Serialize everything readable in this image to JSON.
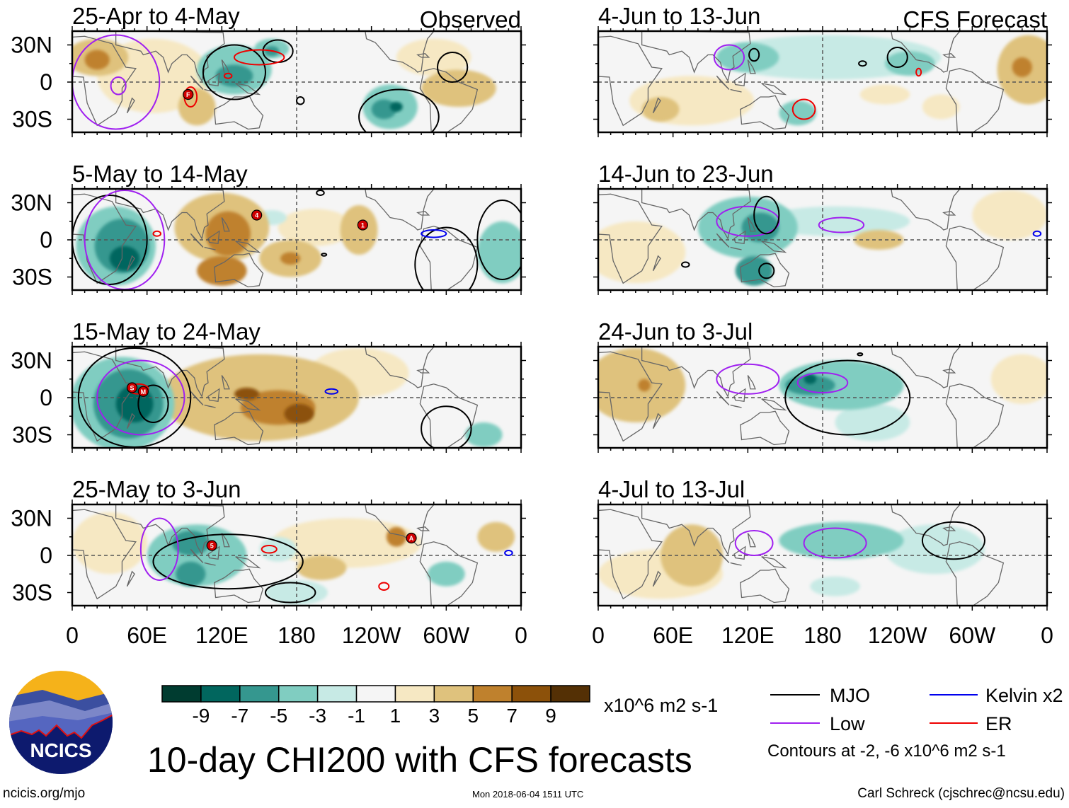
{
  "title": "10-day CHI200 with CFS forecasts",
  "site": "ncicis.org/mjo",
  "logo_text": "NCICS",
  "timestamp": "Mon 2018-06-04 1511 UTC",
  "credit": "Carl Schreck (cjschrec@ncsu.edu)",
  "column_labels": {
    "observed": "Observed",
    "forecast": "CFS Forecast"
  },
  "units": "x10^6 m2 s-1",
  "contour_note": "Contours at -2, -6 x10^6 m2 s-1",
  "legend": [
    {
      "label": "MJO",
      "color": "#000000"
    },
    {
      "label": "Kelvin x2",
      "color": "#0000ee"
    },
    {
      "label": "Low",
      "color": "#a020f0"
    },
    {
      "label": "ER",
      "color": "#ee0000"
    }
  ],
  "chart_data": {
    "type": "heatmap",
    "variable": "CHI200 anomaly",
    "lat_ticks": [
      "30N",
      "0",
      "30S"
    ],
    "lon_ticks": [
      "0",
      "60E",
      "120E",
      "180",
      "120W",
      "60W",
      "0"
    ],
    "colorbar": {
      "labels": [
        "-9",
        "-7",
        "-5",
        "-3",
        "-1",
        "1",
        "3",
        "5",
        "7",
        "9"
      ],
      "colors": [
        "#003c30",
        "#01665e",
        "#35978f",
        "#80cdc1",
        "#c7eae5",
        "#f5f5f5",
        "#f6e8c3",
        "#dfc27d",
        "#bf812d",
        "#8c510a",
        "#543005"
      ]
    },
    "panels": [
      {
        "title": "25-Apr to 4-May",
        "column": "observed",
        "blobs": [
          [
            65,
            5,
            45,
            30,
            1
          ],
          [
            20,
            20,
            25,
            15,
            3
          ],
          [
            20,
            18,
            10,
            8,
            5
          ],
          [
            100,
            -20,
            15,
            15,
            3
          ],
          [
            310,
            -5,
            30,
            15,
            3
          ],
          [
            290,
            20,
            30,
            15,
            1
          ],
          [
            130,
            10,
            30,
            20,
            -3
          ],
          [
            130,
            5,
            15,
            9,
            -5
          ],
          [
            160,
            27,
            14,
            8,
            -3
          ],
          [
            160,
            25,
            6,
            4,
            -5
          ],
          [
            255,
            -20,
            22,
            18,
            -3
          ],
          [
            250,
            -22,
            10,
            8,
            -5
          ],
          [
            260,
            -20,
            5,
            4,
            -7
          ]
        ],
        "contours": [
          [
            "MJO",
            130,
            8,
            25,
            22
          ],
          [
            "MJO",
            165,
            25,
            12,
            9
          ],
          [
            "MJO",
            305,
            12,
            12,
            12
          ],
          [
            "MJO",
            262,
            -28,
            32,
            22
          ],
          [
            "MJO",
            183,
            -15,
            3,
            3
          ],
          [
            "Low",
            35,
            0,
            35,
            38
          ],
          [
            "Low",
            37,
            -3,
            6,
            7
          ],
          [
            "ER",
            150,
            20,
            20,
            6
          ],
          [
            "ER",
            125,
            5,
            3,
            2
          ],
          [
            "ER",
            95,
            -12,
            5,
            8
          ]
        ],
        "storms": [
          [
            93,
            -10,
            "F"
          ]
        ]
      },
      {
        "title": "5-May to 14-May",
        "column": "observed",
        "blobs": [
          [
            195,
            10,
            30,
            15,
            1
          ],
          [
            120,
            10,
            38,
            28,
            3
          ],
          [
            125,
            5,
            18,
            18,
            5
          ],
          [
            120,
            -25,
            20,
            12,
            5
          ],
          [
            175,
            -15,
            25,
            15,
            3
          ],
          [
            175,
            -15,
            8,
            5,
            5
          ],
          [
            230,
            8,
            15,
            20,
            3
          ],
          [
            35,
            -5,
            32,
            32,
            -3
          ],
          [
            40,
            -5,
            22,
            22,
            -5
          ],
          [
            42,
            -15,
            12,
            10,
            -7
          ],
          [
            345,
            -10,
            20,
            25,
            -3
          ],
          [
            160,
            18,
            12,
            6,
            -1
          ]
        ],
        "contours": [
          [
            "MJO",
            30,
            0,
            30,
            36
          ],
          [
            "MJO",
            300,
            -20,
            25,
            30
          ],
          [
            "MJO",
            345,
            0,
            20,
            32
          ],
          [
            "MJO",
            199,
            38,
            3,
            2
          ],
          [
            "MJO",
            202,
            -12,
            2,
            1
          ],
          [
            "Low",
            42,
            0,
            32,
            40
          ],
          [
            "Kelvin",
            290,
            5,
            10,
            3
          ],
          [
            "ER",
            68,
            5,
            3,
            2
          ]
        ],
        "storms": [
          [
            148,
            20,
            "4"
          ],
          [
            233,
            12,
            "1"
          ]
        ]
      },
      {
        "title": "15-May to 24-May",
        "column": "observed",
        "blobs": [
          [
            230,
            20,
            40,
            20,
            1
          ],
          [
            150,
            0,
            80,
            35,
            3
          ],
          [
            165,
            -8,
            30,
            14,
            5
          ],
          [
            182,
            -13,
            12,
            8,
            7
          ],
          [
            140,
            3,
            10,
            5,
            7
          ],
          [
            40,
            -5,
            42,
            38,
            -3
          ],
          [
            45,
            -5,
            28,
            28,
            -5
          ],
          [
            50,
            -5,
            15,
            15,
            -7
          ],
          [
            330,
            -30,
            15,
            10,
            -3
          ]
        ],
        "contours": [
          [
            "MJO",
            50,
            0,
            45,
            40
          ],
          [
            "MJO",
            300,
            -25,
            20,
            18
          ],
          [
            "MJO",
            65,
            -5,
            12,
            15
          ],
          [
            "Low",
            55,
            0,
            35,
            30
          ],
          [
            "Kelvin",
            208,
            5,
            5,
            2
          ],
          [
            "ER",
            53,
            7,
            8,
            4
          ]
        ],
        "storms": [
          [
            48,
            8,
            "S"
          ],
          [
            57,
            5,
            "M"
          ]
        ]
      },
      {
        "title": "25-May to 3-Jun",
        "column": "observed",
        "blobs": [
          [
            220,
            10,
            60,
            20,
            1
          ],
          [
            30,
            10,
            30,
            25,
            1
          ],
          [
            200,
            -10,
            20,
            10,
            3
          ],
          [
            340,
            15,
            15,
            12,
            3
          ],
          [
            260,
            15,
            8,
            8,
            5
          ],
          [
            100,
            0,
            40,
            25,
            -3
          ],
          [
            95,
            10,
            15,
            10,
            -5
          ],
          [
            95,
            -15,
            12,
            10,
            -5
          ],
          [
            300,
            -15,
            15,
            10,
            -3
          ],
          [
            180,
            -30,
            25,
            10,
            -1
          ],
          [
            165,
            5,
            15,
            10,
            -1
          ]
        ],
        "contours": [
          [
            "MJO",
            125,
            -5,
            60,
            22
          ],
          [
            "MJO",
            175,
            -30,
            20,
            8
          ],
          [
            "Low",
            70,
            5,
            15,
            25
          ],
          [
            "ER",
            158,
            5,
            6,
            3
          ],
          [
            "ER",
            250,
            -25,
            4,
            3
          ],
          [
            "Kelvin",
            350,
            2,
            3,
            2
          ]
        ],
        "storms": [
          [
            112,
            8,
            "5"
          ],
          [
            272,
            14,
            "A"
          ]
        ]
      },
      {
        "title": "4-Jun to 13-Jun",
        "column": "forecast",
        "blobs": [
          [
            185,
            20,
            90,
            18,
            -1
          ],
          [
            75,
            -15,
            50,
            20,
            1
          ],
          [
            345,
            10,
            25,
            28,
            3
          ],
          [
            340,
            12,
            8,
            8,
            5
          ],
          [
            50,
            -22,
            15,
            10,
            3
          ],
          [
            160,
            -25,
            15,
            10,
            -3
          ],
          [
            120,
            20,
            25,
            12,
            -3
          ],
          [
            250,
            15,
            20,
            10,
            -3
          ],
          [
            275,
            -20,
            15,
            10,
            1
          ],
          [
            230,
            -10,
            20,
            8,
            1
          ]
        ],
        "contours": [
          [
            "Low",
            105,
            20,
            12,
            10
          ],
          [
            "MJO",
            125,
            22,
            4,
            5
          ],
          [
            "MJO",
            240,
            20,
            8,
            8
          ],
          [
            "MJO",
            212,
            15,
            3,
            2
          ],
          [
            "ER",
            165,
            -22,
            9,
            8
          ],
          [
            "ER",
            257,
            8,
            2,
            3
          ]
        ],
        "storms": []
      },
      {
        "title": "14-Jun to 23-Jun",
        "column": "forecast",
        "blobs": [
          [
            190,
            15,
            60,
            12,
            -1
          ],
          [
            120,
            10,
            40,
            25,
            -3
          ],
          [
            130,
            10,
            15,
            12,
            -5
          ],
          [
            125,
            -25,
            15,
            12,
            -5
          ],
          [
            225,
            0,
            20,
            8,
            3
          ],
          [
            330,
            20,
            30,
            20,
            1
          ],
          [
            30,
            -10,
            40,
            25,
            1
          ]
        ],
        "contours": [
          [
            "Low",
            120,
            15,
            25,
            12
          ],
          [
            "Low",
            195,
            12,
            18,
            6
          ],
          [
            "MJO",
            135,
            20,
            10,
            15
          ],
          [
            "MJO",
            135,
            -25,
            6,
            6
          ],
          [
            "MJO",
            70,
            -20,
            3,
            2
          ],
          [
            "Kelvin",
            352,
            5,
            3,
            2
          ]
        ],
        "storms": []
      },
      {
        "title": "24-Jun to 3-Jul",
        "column": "forecast",
        "blobs": [
          [
            30,
            10,
            40,
            30,
            3
          ],
          [
            37,
            10,
            5,
            5,
            5
          ],
          [
            340,
            15,
            25,
            20,
            1
          ],
          [
            220,
            -20,
            30,
            15,
            -1
          ],
          [
            195,
            10,
            50,
            20,
            -3
          ],
          [
            170,
            10,
            20,
            8,
            -5
          ],
          [
            170,
            15,
            5,
            4,
            -7
          ]
        ],
        "contours": [
          [
            "MJO",
            200,
            0,
            50,
            30
          ],
          [
            "Low",
            120,
            15,
            25,
            12
          ],
          [
            "Low",
            180,
            12,
            20,
            8
          ],
          [
            "MJO",
            210,
            35,
            2,
            1
          ]
        ],
        "storms": []
      },
      {
        "title": "4-Jul to 13-Jul",
        "column": "forecast",
        "blobs": [
          [
            50,
            -15,
            50,
            20,
            1
          ],
          [
            75,
            0,
            25,
            25,
            3
          ],
          [
            270,
            5,
            40,
            20,
            -1
          ],
          [
            195,
            12,
            50,
            15,
            -3
          ],
          [
            190,
            -25,
            20,
            8,
            -1
          ]
        ],
        "contours": [
          [
            "Low",
            125,
            10,
            15,
            10
          ],
          [
            "Low",
            190,
            10,
            25,
            12
          ],
          [
            "MJO",
            285,
            12,
            25,
            15
          ]
        ],
        "storms": []
      }
    ]
  }
}
